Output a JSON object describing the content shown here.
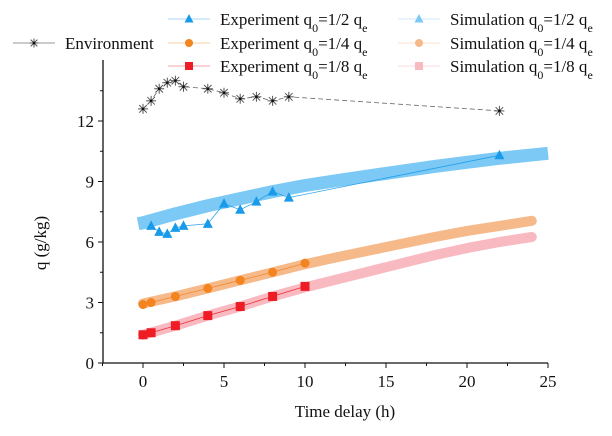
{
  "chart_data": {
    "type": "line",
    "title": "",
    "xlabel": "Time delay (h)",
    "ylabel": "q (g/kg)",
    "xlim": [
      -2.5,
      25
    ],
    "ylim": [
      0,
      14.5
    ],
    "xticks": [
      0,
      5,
      10,
      15,
      20,
      25
    ],
    "yticks": [
      0,
      3,
      6,
      9,
      12
    ],
    "grid": false,
    "legend_placement": "top",
    "series": [
      {
        "name": "Environment",
        "kind": "experiment",
        "marker": "asterisk",
        "color": "#555555",
        "x": [
          0,
          0.5,
          1,
          1.5,
          2,
          2.5,
          4,
          5,
          6,
          7,
          8,
          9,
          22
        ],
        "y": [
          12.6,
          13.0,
          13.6,
          13.9,
          14.0,
          13.7,
          13.6,
          13.4,
          13.1,
          13.2,
          13.0,
          13.2,
          12.5
        ]
      },
      {
        "name": "Experiment q0=1/2 qe",
        "kind": "experiment",
        "marker": "triangle",
        "color": "#1a9bea",
        "x": [
          0.5,
          1,
          1.5,
          2,
          2.5,
          4,
          5,
          6,
          7,
          8,
          9,
          22
        ],
        "y": [
          6.8,
          6.5,
          6.4,
          6.7,
          6.8,
          6.9,
          7.9,
          7.6,
          8.0,
          8.5,
          8.2,
          10.3
        ]
      },
      {
        "name": "Experiment q0=1/4 qe",
        "kind": "experiment",
        "marker": "circle",
        "color": "#f4841f",
        "x": [
          0,
          0.5,
          2,
          4,
          6,
          8,
          10
        ],
        "y": [
          2.9,
          3.0,
          3.3,
          3.7,
          4.1,
          4.5,
          4.95
        ]
      },
      {
        "name": "Experiment q0=1/8 qe",
        "kind": "experiment",
        "marker": "square",
        "color": "#ee1c24",
        "x": [
          0,
          0.5,
          2,
          4,
          6,
          8,
          10
        ],
        "y": [
          1.4,
          1.5,
          1.85,
          2.35,
          2.8,
          3.3,
          3.8
        ]
      },
      {
        "name": "Simulation q0=1/2 qe",
        "kind": "simulation",
        "color": "#7cc9f5",
        "x": [
          -0.3,
          0,
          2,
          4,
          6,
          8,
          10,
          12,
          15,
          18,
          20,
          22,
          25
        ],
        "y": [
          6.9,
          6.95,
          7.4,
          7.8,
          8.15,
          8.5,
          8.8,
          9.05,
          9.4,
          9.75,
          9.95,
          10.15,
          10.4
        ]
      },
      {
        "name": "Simulation q0=1/4 qe",
        "kind": "simulation",
        "color": "#f5b98a",
        "x": [
          0,
          2,
          4,
          6,
          8,
          10,
          12,
          15,
          18,
          20,
          22,
          24
        ],
        "y": [
          2.95,
          3.3,
          3.7,
          4.1,
          4.5,
          4.9,
          5.25,
          5.75,
          6.25,
          6.55,
          6.8,
          7.05
        ]
      },
      {
        "name": "Simulation q0=1/8 qe",
        "kind": "simulation",
        "color": "#f9b9c0",
        "x": [
          0,
          2,
          4,
          6,
          8,
          10,
          12,
          15,
          18,
          20,
          22,
          24
        ],
        "y": [
          1.4,
          1.85,
          2.35,
          2.8,
          3.3,
          3.75,
          4.15,
          4.75,
          5.35,
          5.7,
          6.0,
          6.25
        ]
      }
    ],
    "legend": [
      {
        "label": "Environment",
        "marker": "asterisk",
        "color": "#555555"
      },
      {
        "label": "Experiment q0=1/2 qe",
        "marker": "triangle",
        "color": "#1a9bea"
      },
      {
        "label": "Experiment q0=1/4 qe",
        "marker": "circle",
        "color": "#f4841f"
      },
      {
        "label": "Experiment q0=1/8 qe",
        "marker": "square",
        "color": "#ee1c24"
      },
      {
        "label": "Simulation q0=1/2 qe",
        "marker": "triangle",
        "color": "#7cc9f5"
      },
      {
        "label": "Simulation q0=1/4 qe",
        "marker": "circle",
        "color": "#f5b98a"
      },
      {
        "label": "Simulation q0=1/8 qe",
        "marker": "square",
        "color": "#f9b9c0"
      }
    ]
  }
}
